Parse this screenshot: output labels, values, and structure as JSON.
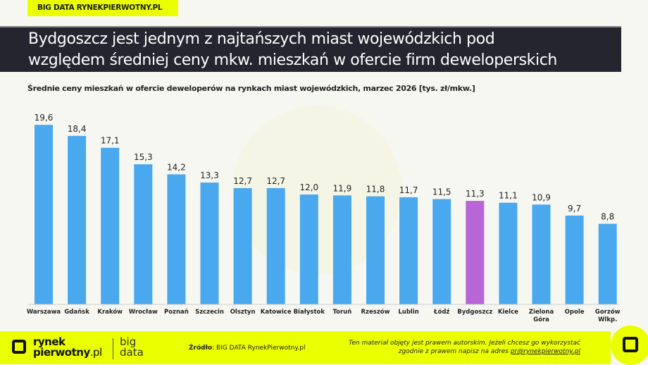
{
  "header": {
    "tag": "BIG DATA RYNEKPIERWOTNY.PL",
    "title_line1": "Bydgoszcz jest jednym z najtańszych miast wojewódzkich pod",
    "title_line2": "względem średniej ceny mkw. mieszkań w ofercie firm deweloperskich"
  },
  "colors": {
    "bar": "#4aa8ee",
    "highlight": "#b865d6",
    "accent": "#eaff00",
    "title_bg": "#24252f"
  },
  "chart_data": {
    "type": "bar",
    "title": "Średnie ceny mieszkań w ofercie deweloperów na rynkach miast wojewódzkich, marzec 2026 [tys. zł/mkw.]",
    "categories": [
      "Warszawa",
      "Gdańsk",
      "Kraków",
      "Wrocław",
      "Poznań",
      "Szczecin",
      "Olsztyn",
      "Katowice",
      "Białystok",
      "Toruń",
      "Rzeszów",
      "Lublin",
      "Łódź",
      "Bydgoszcz",
      "Kielce",
      "Zielona Góra",
      "Opole",
      "Gorzów Wlkp."
    ],
    "values": [
      19.6,
      18.4,
      17.1,
      15.3,
      14.2,
      13.3,
      12.7,
      12.7,
      12.0,
      11.9,
      11.8,
      11.7,
      11.5,
      11.3,
      11.1,
      10.9,
      9.7,
      8.8
    ],
    "labels": [
      "19,6",
      "18,4",
      "17,1",
      "15,3",
      "14,2",
      "13,3",
      "12,7",
      "12,7",
      "12,0",
      "11,9",
      "11,8",
      "11,7",
      "11,5",
      "11,3",
      "11,1",
      "10,9",
      "9,7",
      "8,8"
    ],
    "highlight": "Bydgoszcz",
    "ylim": [
      0,
      20
    ],
    "grid": false,
    "legend": "none"
  },
  "footer": {
    "logo_main": "rynek",
    "logo_main2": "pierwotny",
    "logo_pl": ".pl",
    "logo_big": "big",
    "logo_data": "data",
    "source_label": "Źródło",
    "source_value": ": BIG DATA RynekPierwotny.pl",
    "note_line1": "Ten materiał objęty jest prawem autorskim. Jeżeli chcesz go wykorzystać",
    "note_line2": "zgodnie z prawem napisz na adres ",
    "note_email": "pr@rynekpierwotny.pl"
  }
}
